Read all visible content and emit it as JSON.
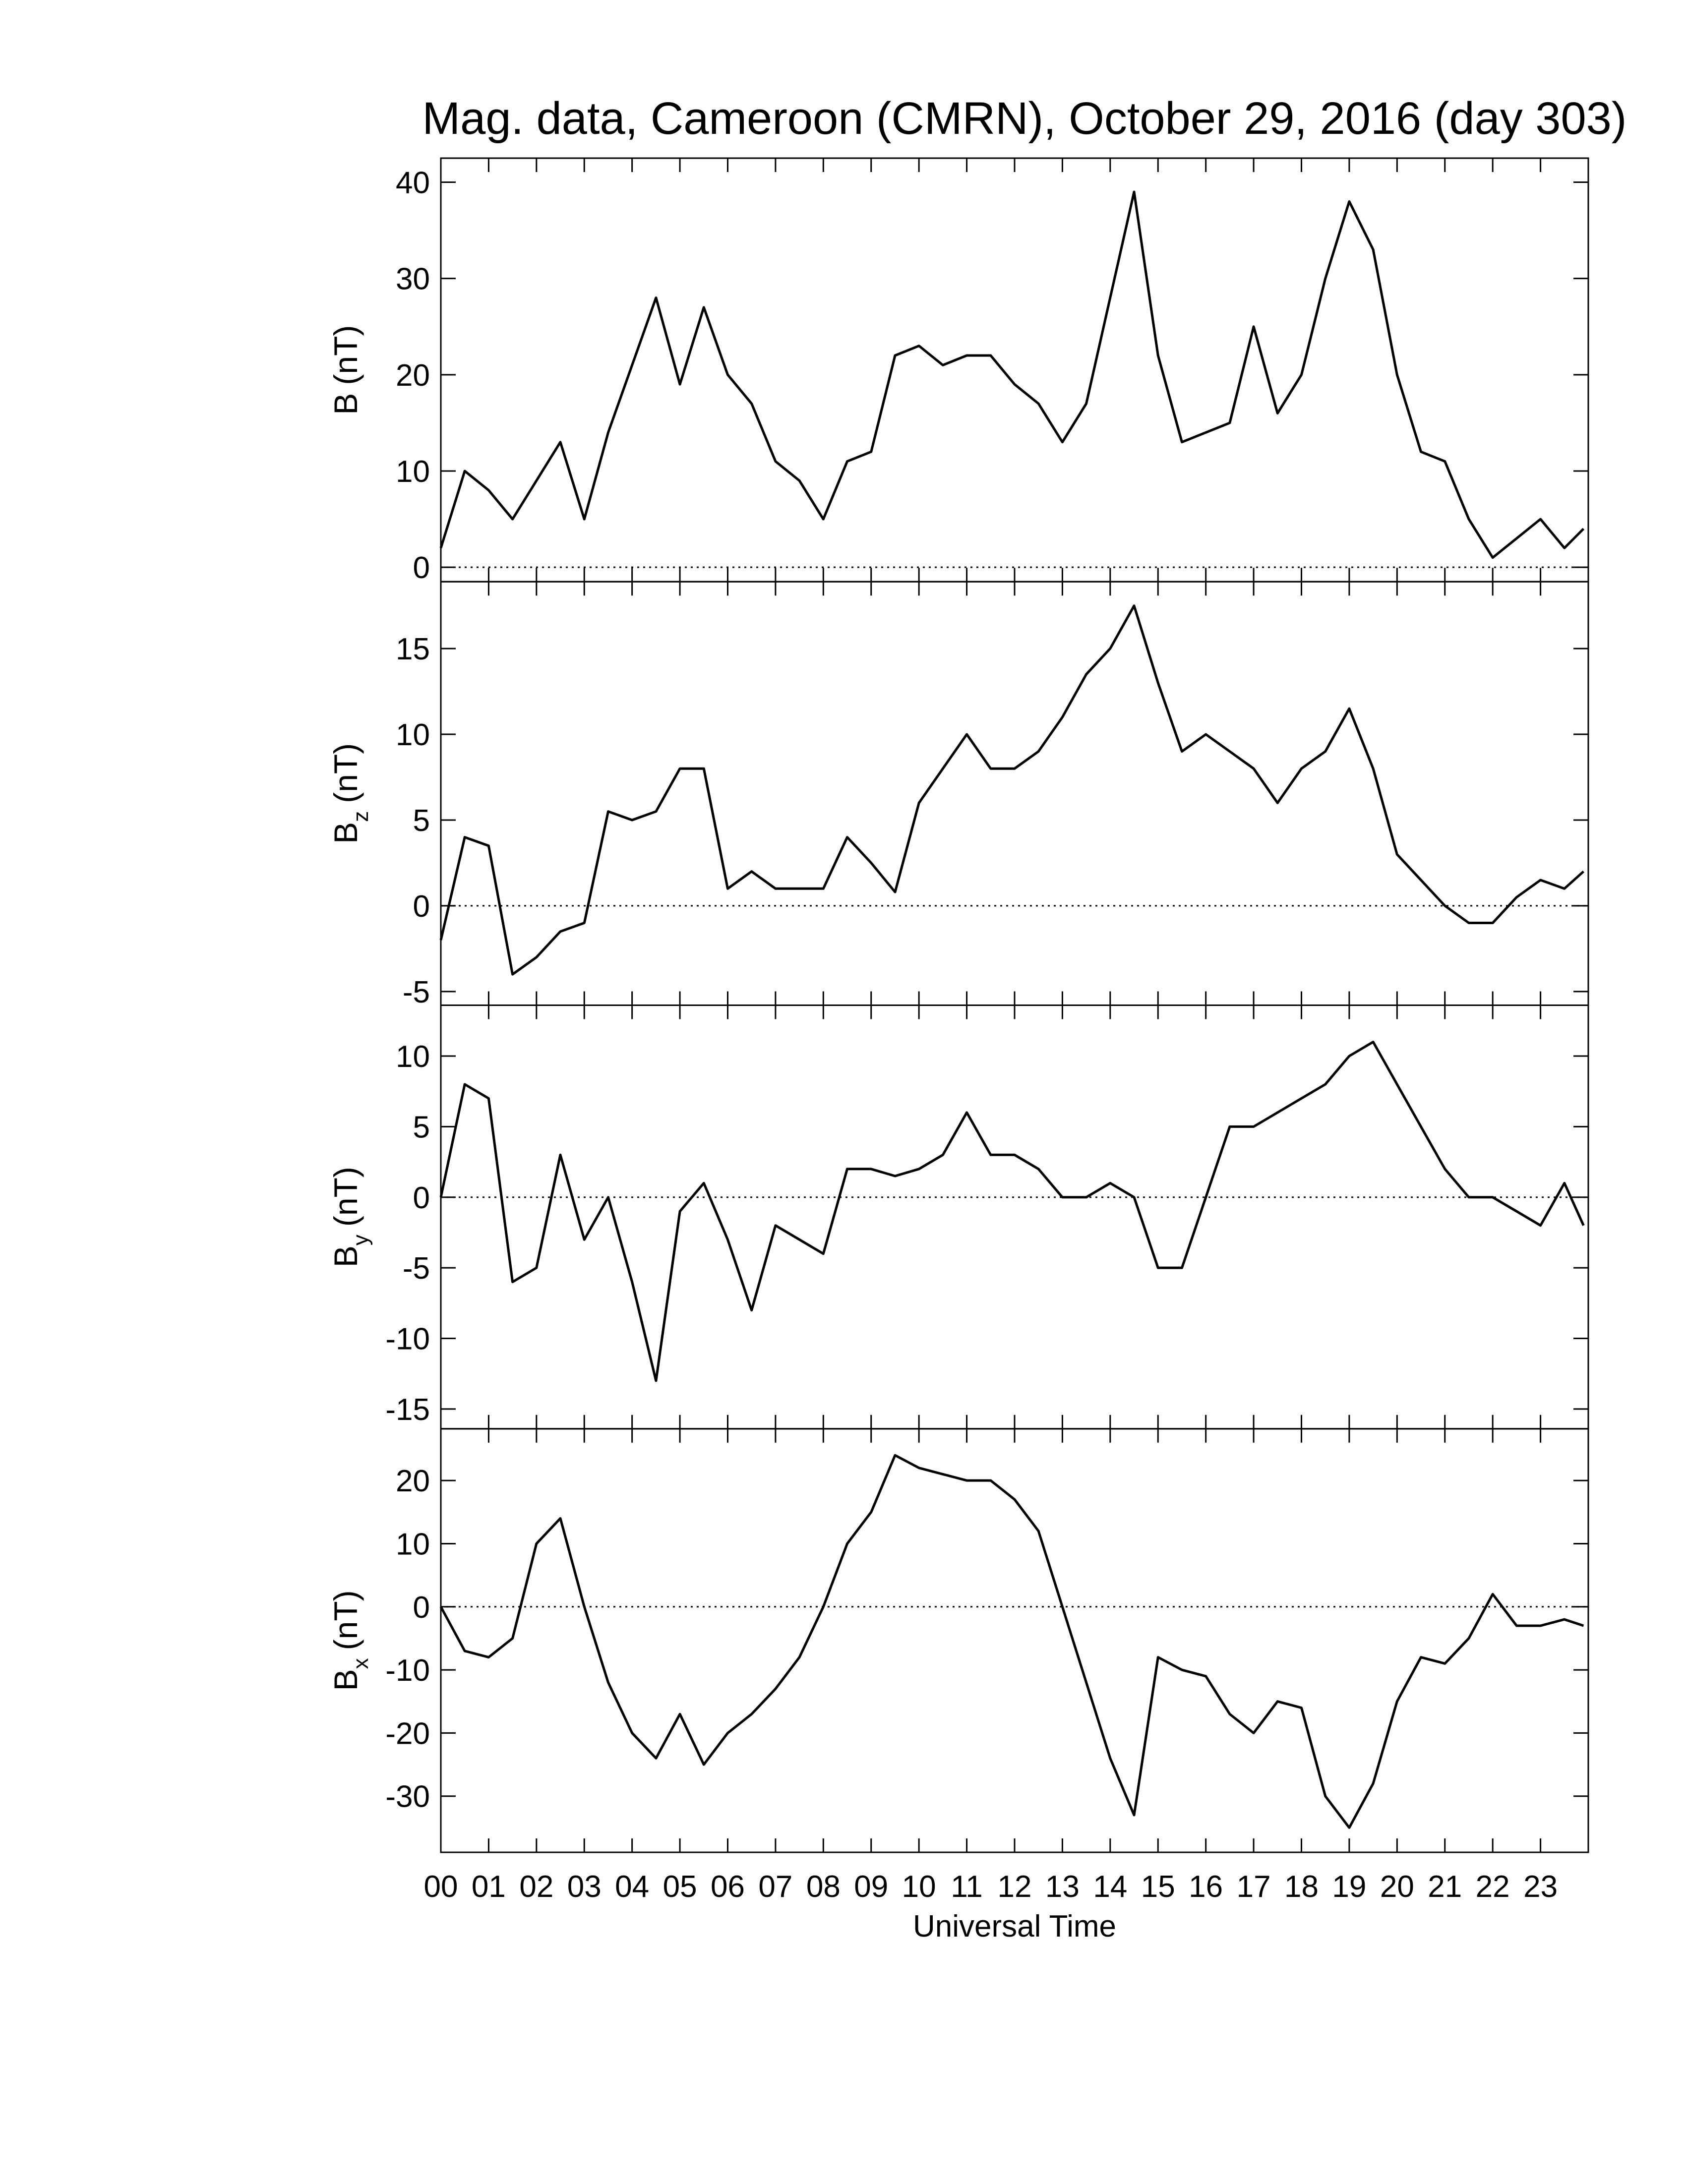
{
  "chart_data": [
    {
      "type": "line",
      "title": "Mag. data, Cameroon (CMRN), October 29, 2016 (day 303)",
      "ylabel": {
        "text": "B",
        "unit": "(nT)"
      },
      "color": "#000000",
      "hline": 0,
      "xlim": [
        0,
        24
      ],
      "ylim": [
        -1.5,
        42.5
      ],
      "yticks": [
        0,
        10,
        20,
        30,
        40
      ],
      "x": [
        0,
        0.5,
        1,
        1.5,
        2,
        2.5,
        3,
        3.5,
        4,
        4.5,
        5,
        5.5,
        6,
        6.5,
        7,
        7.5,
        8,
        8.5,
        9,
        9.5,
        10,
        10.5,
        11,
        11.5,
        12,
        12.5,
        13,
        13.5,
        14,
        14.5,
        15,
        15.5,
        16,
        16.5,
        17,
        17.5,
        18,
        18.5,
        19,
        19.5,
        20,
        20.5,
        21,
        21.5,
        22,
        22.5,
        23,
        23.5,
        23.9
      ],
      "values": [
        2,
        10,
        8,
        5,
        9,
        13,
        5,
        14,
        21,
        28,
        19,
        27,
        20,
        17,
        11,
        9,
        5,
        11,
        12,
        22,
        23,
        21,
        22,
        22,
        19,
        17,
        13,
        17,
        28,
        39,
        22,
        13,
        14,
        15,
        25,
        16,
        20,
        30,
        38,
        33,
        20,
        12,
        11,
        5,
        1,
        3,
        5,
        2,
        4
      ]
    },
    {
      "type": "line",
      "ylabel": {
        "text": "B",
        "sub": "z",
        "unit": "(nT)"
      },
      "color": "#000000",
      "hline": 0,
      "xlim": [
        0,
        24
      ],
      "ylim": [
        -5.8,
        18.9
      ],
      "yticks": [
        -5,
        0,
        5,
        10,
        15
      ],
      "x": [
        0,
        0.5,
        1,
        1.5,
        2,
        2.5,
        3,
        3.5,
        4,
        4.5,
        5,
        5.5,
        6,
        6.5,
        7,
        7.5,
        8,
        8.5,
        9,
        9.5,
        10,
        10.5,
        11,
        11.5,
        12,
        12.5,
        13,
        13.5,
        14,
        14.5,
        15,
        15.5,
        16,
        16.5,
        17,
        17.5,
        18,
        18.5,
        19,
        19.5,
        20,
        20.5,
        21,
        21.5,
        22,
        22.5,
        23,
        23.5,
        23.9
      ],
      "values": [
        -2,
        4,
        3.5,
        -4,
        -3,
        -1.5,
        -1,
        5.5,
        5,
        5.5,
        8,
        8,
        1,
        2,
        1,
        1,
        1,
        4,
        2.5,
        0.8,
        6,
        8,
        10,
        8,
        8,
        9,
        11,
        13.5,
        15,
        17.5,
        13,
        9,
        10,
        9,
        8,
        6,
        8,
        9,
        11.5,
        8,
        3,
        1.5,
        0,
        -1,
        -1,
        0.5,
        1.5,
        1,
        2
      ]
    },
    {
      "type": "line",
      "ylabel": {
        "text": "B",
        "sub": "y",
        "unit": "(nT)"
      },
      "color": "#000000",
      "hline": 0,
      "xlim": [
        0,
        24
      ],
      "ylim": [
        -16.4,
        13.6
      ],
      "yticks": [
        -15,
        -10,
        -5,
        0,
        5,
        10
      ],
      "x": [
        0,
        0.5,
        1,
        1.5,
        2,
        2.5,
        3,
        3.5,
        4,
        4.5,
        5,
        5.5,
        6,
        6.5,
        7,
        7.5,
        8,
        8.5,
        9,
        9.5,
        10,
        10.5,
        11,
        11.5,
        12,
        12.5,
        13,
        13.5,
        14,
        14.5,
        15,
        15.5,
        16,
        16.5,
        17,
        17.5,
        18,
        18.5,
        19,
        19.5,
        20,
        20.5,
        21,
        21.5,
        22,
        22.5,
        23,
        23.5,
        23.9
      ],
      "values": [
        0,
        8,
        7,
        -6,
        -5,
        3,
        -3,
        0,
        -6,
        -13,
        -1,
        1,
        -3,
        -8,
        -2,
        -3,
        -4,
        2,
        2,
        1.5,
        2,
        3,
        6,
        3,
        3,
        2,
        0,
        0,
        1,
        0,
        -5,
        -5,
        0,
        5,
        5,
        6,
        7,
        8,
        10,
        11,
        8,
        5,
        2,
        0,
        0,
        -1,
        -2,
        1,
        -2
      ]
    },
    {
      "type": "line",
      "ylabel": {
        "text": "B",
        "sub": "x",
        "unit": "(nT)"
      },
      "xlabel": "Universal Time",
      "color": "#000000",
      "hline": 0,
      "xlim": [
        0,
        24
      ],
      "ylim": [
        -38.9,
        28.2
      ],
      "yticks": [
        -30,
        -20,
        -10,
        0,
        10,
        20
      ],
      "xticks": [
        {
          "value": 0,
          "label": "00"
        },
        {
          "value": 1,
          "label": "01"
        },
        {
          "value": 2,
          "label": "02"
        },
        {
          "value": 3,
          "label": "03"
        },
        {
          "value": 4,
          "label": "04"
        },
        {
          "value": 5,
          "label": "05"
        },
        {
          "value": 6,
          "label": "06"
        },
        {
          "value": 7,
          "label": "07"
        },
        {
          "value": 8,
          "label": "08"
        },
        {
          "value": 9,
          "label": "09"
        },
        {
          "value": 10,
          "label": "10"
        },
        {
          "value": 11,
          "label": "11"
        },
        {
          "value": 12,
          "label": "12"
        },
        {
          "value": 13,
          "label": "13"
        },
        {
          "value": 14,
          "label": "14"
        },
        {
          "value": 15,
          "label": "15"
        },
        {
          "value": 16,
          "label": "16"
        },
        {
          "value": 17,
          "label": "17"
        },
        {
          "value": 18,
          "label": "18"
        },
        {
          "value": 19,
          "label": "19"
        },
        {
          "value": 20,
          "label": "20"
        },
        {
          "value": 21,
          "label": "21"
        },
        {
          "value": 22,
          "label": "22"
        },
        {
          "value": 23,
          "label": "23"
        }
      ],
      "x": [
        0,
        0.5,
        1,
        1.5,
        2,
        2.5,
        3,
        3.5,
        4,
        4.5,
        5,
        5.5,
        6,
        6.5,
        7,
        7.5,
        8,
        8.5,
        9,
        9.5,
        10,
        10.5,
        11,
        11.5,
        12,
        12.5,
        13,
        13.5,
        14,
        14.5,
        15,
        15.5,
        16,
        16.5,
        17,
        17.5,
        18,
        18.5,
        19,
        19.5,
        20,
        20.5,
        21,
        21.5,
        22,
        22.5,
        23,
        23.5,
        23.9
      ],
      "values": [
        0,
        -7,
        -8,
        -5,
        10,
        14,
        0,
        -12,
        -20,
        -24,
        -17,
        -25,
        -20,
        -17,
        -13,
        -8,
        0,
        10,
        15,
        24,
        22,
        21,
        20,
        20,
        17,
        12,
        0,
        -12,
        -24,
        -33,
        -8,
        -10,
        -11,
        -17,
        -20,
        -15,
        -16,
        -30,
        -35,
        -28,
        -15,
        -8,
        -9,
        -5,
        2,
        -3,
        -3,
        -2,
        -3
      ]
    }
  ]
}
